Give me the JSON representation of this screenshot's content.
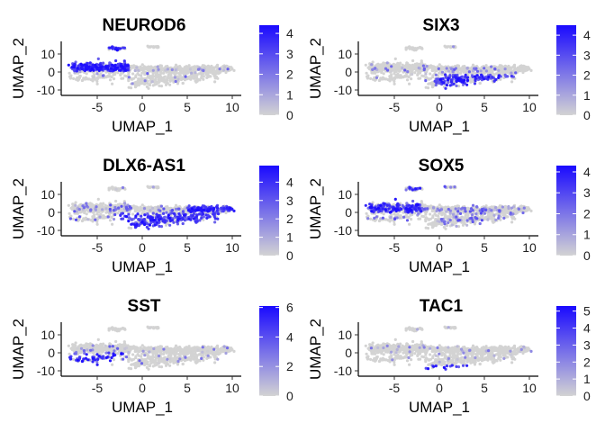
{
  "chart_data": [
    {
      "type": "scatter",
      "title": "NEUROD6",
      "xlabel": "UMAP_1",
      "ylabel": "UMAP_2",
      "xlim": [
        -9,
        11
      ],
      "ylim": [
        -13,
        17
      ],
      "xticks": [
        -5,
        0,
        5,
        10
      ],
      "yticks": [
        -10,
        0,
        10
      ],
      "x_tick_labels": [
        "-5",
        "0",
        "5",
        "10"
      ],
      "y_tick_labels": [
        "-10",
        "0",
        "10"
      ],
      "color_scale": {
        "low": "#d3d3d3",
        "high": "#1a0aff",
        "min": 0,
        "max": 4.4,
        "ticks": [
          0,
          1,
          2,
          3,
          4
        ],
        "tick_labels": [
          "0",
          "1",
          "2",
          "3",
          "4"
        ]
      },
      "expression_region": "upper-left arm"
    },
    {
      "type": "scatter",
      "title": "SIX3",
      "xlabel": "UMAP_1",
      "ylabel": "UMAP_2",
      "xlim": [
        -9,
        11
      ],
      "ylim": [
        -13,
        17
      ],
      "xticks": [
        -5,
        0,
        5,
        10
      ],
      "yticks": [
        -10,
        0,
        10
      ],
      "x_tick_labels": [
        "-5",
        "0",
        "5",
        "10"
      ],
      "y_tick_labels": [
        "-10",
        "0",
        "10"
      ],
      "color_scale": {
        "low": "#d3d3d3",
        "high": "#1a0aff",
        "min": 0,
        "max": 4.5,
        "ticks": [
          0,
          1,
          2,
          3,
          4
        ],
        "tick_labels": [
          "0",
          "1",
          "2",
          "3",
          "4"
        ]
      },
      "expression_region": "lower-middle lobe"
    },
    {
      "type": "scatter",
      "title": "DLX6-AS1",
      "xlabel": "UMAP_1",
      "ylabel": "UMAP_2",
      "xlim": [
        -9,
        11
      ],
      "ylim": [
        -13,
        17
      ],
      "xticks": [
        -5,
        0,
        5,
        10
      ],
      "yticks": [
        -10,
        0,
        10
      ],
      "x_tick_labels": [
        "-5",
        "0",
        "5",
        "10"
      ],
      "y_tick_labels": [
        "-10",
        "0",
        "10"
      ],
      "color_scale": {
        "low": "#d3d3d3",
        "high": "#1a0aff",
        "min": 0,
        "max": 4.9,
        "ticks": [
          0,
          1,
          2,
          3,
          4
        ],
        "tick_labels": [
          "0",
          "1",
          "2",
          "3",
          "4"
        ]
      },
      "expression_region": "lower lobe and right tail"
    },
    {
      "type": "scatter",
      "title": "SOX5",
      "xlabel": "UMAP_1",
      "ylabel": "UMAP_2",
      "xlim": [
        -9,
        11
      ],
      "ylim": [
        -13,
        17
      ],
      "xticks": [
        -5,
        0,
        5,
        10
      ],
      "yticks": [
        -10,
        0,
        10
      ],
      "x_tick_labels": [
        "-5",
        "0",
        "5",
        "10"
      ],
      "y_tick_labels": [
        "-10",
        "0",
        "10"
      ],
      "color_scale": {
        "low": "#d3d3d3",
        "high": "#1a0aff",
        "min": 0,
        "max": 4.3,
        "ticks": [
          0,
          1,
          2,
          3,
          4
        ],
        "tick_labels": [
          "0",
          "1",
          "2",
          "3",
          "4"
        ]
      },
      "expression_region": "left arm, scattered"
    },
    {
      "type": "scatter",
      "title": "SST",
      "xlabel": "UMAP_1",
      "ylabel": "UMAP_2",
      "xlim": [
        -9,
        11
      ],
      "ylim": [
        -13,
        17
      ],
      "xticks": [
        -5,
        0,
        5,
        10
      ],
      "yticks": [
        -10,
        0,
        10
      ],
      "x_tick_labels": [
        "-5",
        "0",
        "5",
        "10"
      ],
      "y_tick_labels": [
        "-10",
        "0",
        "10"
      ],
      "color_scale": {
        "low": "#d3d3d3",
        "high": "#1a0aff",
        "min": 0,
        "max": 6.1,
        "ticks": [
          0,
          2,
          4,
          6
        ],
        "tick_labels": [
          "0",
          "2",
          "4",
          "6"
        ]
      },
      "expression_region": "lower-left patch"
    },
    {
      "type": "scatter",
      "title": "TAC1",
      "xlabel": "UMAP_1",
      "ylabel": "UMAP_2",
      "xlim": [
        -9,
        11
      ],
      "ylim": [
        -13,
        17
      ],
      "xticks": [
        -5,
        0,
        5,
        10
      ],
      "yticks": [
        -10,
        0,
        10
      ],
      "x_tick_labels": [
        "-5",
        "0",
        "5",
        "10"
      ],
      "y_tick_labels": [
        "-10",
        "0",
        "10"
      ],
      "color_scale": {
        "low": "#d3d3d3",
        "high": "#1a0aff",
        "min": 0,
        "max": 5.3,
        "ticks": [
          0,
          1,
          2,
          3,
          4,
          5
        ],
        "tick_labels": [
          "0",
          "1",
          "2",
          "3",
          "4",
          "5"
        ]
      },
      "expression_region": "bottom edge of lower lobe"
    }
  ]
}
